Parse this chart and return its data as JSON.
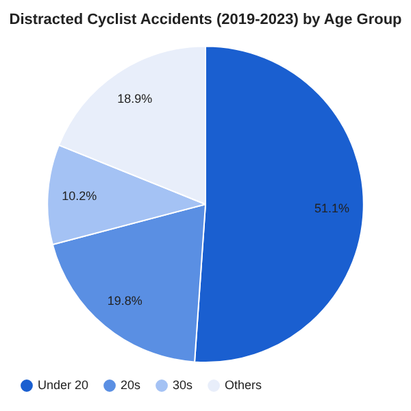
{
  "chart_data": {
    "type": "pie",
    "title": "Distracted Cyclist Accidents (2019-2023) by Age Group",
    "categories": [
      "Under 20",
      "20s",
      "30s",
      "Others"
    ],
    "values": [
      51.1,
      19.8,
      10.2,
      18.9
    ],
    "value_labels": [
      "51.1%",
      "19.8%",
      "10.2%",
      "18.9%"
    ],
    "colors": [
      "#1a5fd0",
      "#5a8fe3",
      "#a4c2f4",
      "#e8eefa"
    ],
    "legend": "bottom left"
  }
}
